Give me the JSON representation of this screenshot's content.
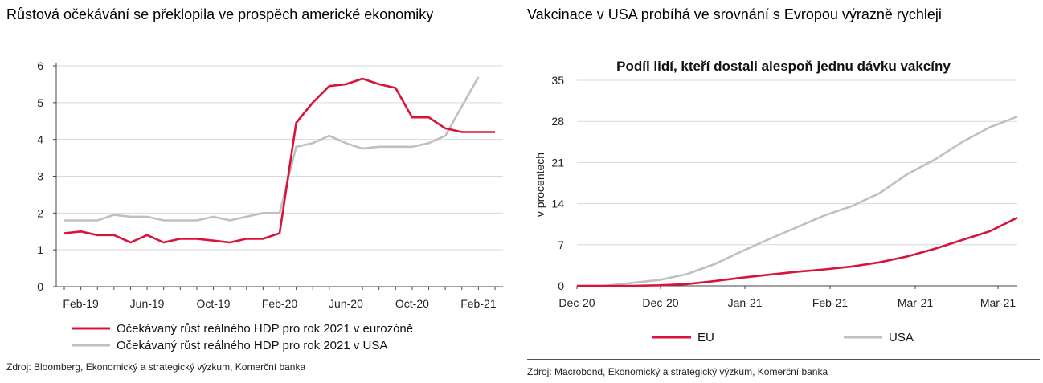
{
  "left": {
    "title": "Růstová očekávání se překlopila ve prospěch americké ekonomiky",
    "source": "Zdroj: Bloomberg, Ekonomický a strategický výzkum, Komerční banka",
    "colors": {
      "eu": "#d8143a",
      "us": "#c0c0c0"
    }
  },
  "right": {
    "title": "Vakcinace v USA probíhá ve srovnání s Evropou výrazně rychleji",
    "source": "Zdroj: Macrobond, Ekonomický a strategický výzkum, Komerční banka",
    "colors": {
      "eu": "#d8143a",
      "us": "#c0c0c0"
    }
  },
  "chart_data": [
    {
      "type": "line",
      "title": "",
      "xlabel": "",
      "ylabel": "",
      "x_tick_labels": [
        "Feb-19",
        "Jun-19",
        "Oct-19",
        "Feb-20",
        "Jun-20",
        "Oct-20",
        "Feb-21"
      ],
      "y_ticks": [
        0,
        1,
        2,
        3,
        4,
        5,
        6
      ],
      "ylim": [
        0,
        6
      ],
      "x": [
        "2019-01",
        "2019-02",
        "2019-03",
        "2019-04",
        "2019-05",
        "2019-06",
        "2019-07",
        "2019-08",
        "2019-09",
        "2019-10",
        "2019-11",
        "2019-12",
        "2020-01",
        "2020-02",
        "2020-03",
        "2020-04",
        "2020-05",
        "2020-06",
        "2020-07",
        "2020-08",
        "2020-09",
        "2020-10",
        "2020-11",
        "2020-12",
        "2021-01",
        "2021-02",
        "2021-03"
      ],
      "series": [
        {
          "name": "Očekávaný růst reálného HDP pro rok 2021 v eurozóně",
          "values": [
            1.45,
            1.5,
            1.4,
            1.4,
            1.2,
            1.4,
            1.2,
            1.3,
            1.3,
            1.25,
            1.2,
            1.3,
            1.3,
            1.45,
            4.45,
            5.0,
            5.45,
            5.5,
            5.65,
            5.5,
            5.4,
            4.6,
            4.6,
            4.3,
            4.2,
            4.2,
            4.2
          ]
        },
        {
          "name": "Očekávaný růst reálného HDP pro rok 2021 v USA",
          "values": [
            1.8,
            1.8,
            1.8,
            1.95,
            1.9,
            1.9,
            1.8,
            1.8,
            1.8,
            1.9,
            1.8,
            1.9,
            2.0,
            2.0,
            3.8,
            3.9,
            4.1,
            3.9,
            3.75,
            3.8,
            3.8,
            3.8,
            3.9,
            4.1,
            4.9,
            5.7,
            null
          ]
        }
      ],
      "legend": "bottom"
    },
    {
      "type": "line",
      "title": "Podíl lidí, kteří dostali alespoň jednu dávku vakcíny",
      "xlabel": "",
      "ylabel": "v procentech",
      "x_tick_labels": [
        "Dec-20",
        "Dec-20",
        "Jan-21",
        "Feb-21",
        "Mar-21",
        "Mar-21"
      ],
      "y_ticks": [
        0,
        7,
        14,
        21,
        28,
        35
      ],
      "ylim": [
        0,
        35
      ],
      "x": [
        "2020-12-14",
        "2020-12-21",
        "2020-12-28",
        "2021-01-04",
        "2021-01-11",
        "2021-01-18",
        "2021-01-25",
        "2021-02-01",
        "2021-02-08",
        "2021-02-15",
        "2021-02-22",
        "2021-03-01",
        "2021-03-08",
        "2021-03-15",
        "2021-03-22",
        "2021-03-29",
        "2021-04-05"
      ],
      "series": [
        {
          "name": "EU",
          "values": [
            0,
            0,
            0,
            0.1,
            0.3,
            0.8,
            1.4,
            1.9,
            2.4,
            2.8,
            3.3,
            4.0,
            5.0,
            6.3,
            7.8,
            9.3,
            11.6
          ]
        },
        {
          "name": "USA",
          "values": [
            0,
            0,
            0.5,
            1.0,
            2.0,
            3.7,
            5.9,
            8.0,
            10.0,
            12.0,
            13.6,
            15.8,
            19.0,
            21.5,
            24.5,
            27.0,
            28.8
          ]
        }
      ],
      "legend": "bottom"
    }
  ]
}
